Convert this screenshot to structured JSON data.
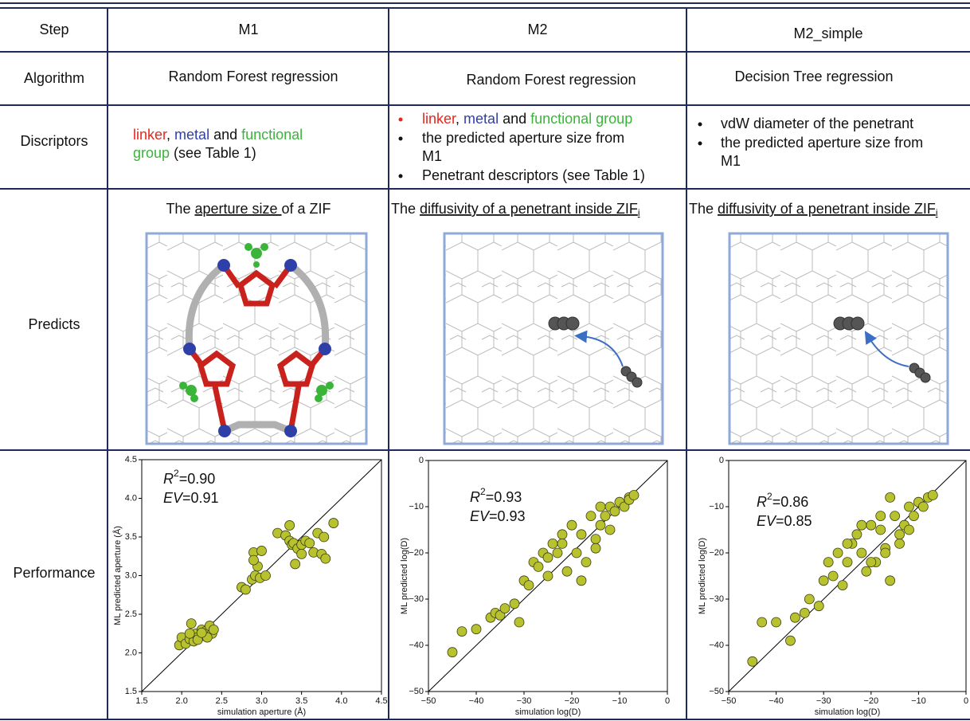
{
  "table": {
    "header": [
      "Step",
      "M1",
      "M2",
      "M2_simple"
    ],
    "rows": [
      {
        "label": "Algorithm",
        "cells": [
          "Random Forest regression",
          "Random Forest regression",
          "Decision Tree regression"
        ]
      },
      {
        "label": "Discriptors",
        "cells": [
          [
            "linker",
            ", ",
            "metal",
            " and ",
            "functional",
            "group",
            " (see Table 1)"
          ],
          [
            [
              "linker",
              ", ",
              "metal",
              " and ",
              "functional group"
            ],
            [
              "the predicted aperture size from",
              "M1"
            ],
            [
              "Penetrant descriptors (see Table 1)"
            ]
          ],
          [
            [
              "vdW diameter of the penetrant"
            ],
            [
              "the predicted aperture size from",
              "M1"
            ]
          ]
        ]
      },
      {
        "label": "Predicts",
        "cells": [
          [
            "The ",
            "aperture size ",
            "of a ZIF"
          ],
          [
            "The ",
            "diffusivity of a penetrant inside ZIF",
            "i"
          ],
          [
            "The ",
            "diffusivity of a penetrant inside ZIF",
            "i"
          ]
        ]
      },
      {
        "label": "Performance"
      }
    ]
  },
  "chart_data": [
    {
      "type": "scatter",
      "xlabel": "simulation aperture (Å)",
      "ylabel": "ML predicted aperture (Å)",
      "xlim": [
        1.5,
        4.5
      ],
      "ylim": [
        1.5,
        4.5
      ],
      "xticks": [
        1.5,
        {
          "value": 2,
          "label": "2.0"
        },
        2.5,
        {
          "value": 3,
          "label": "3.0"
        },
        3.5,
        {
          "value": 4,
          "label": "4.0"
        },
        4.5
      ],
      "yticks": [
        1.5,
        {
          "value": 2,
          "label": "2.0"
        },
        2.5,
        {
          "value": 3,
          "label": "3.0"
        },
        3.5,
        {
          "value": 4,
          "label": "4.0"
        },
        4.5
      ],
      "annotations": [
        {
          "var": "R",
          "sup": "2",
          "text": "=0.90"
        },
        {
          "var": "EV",
          "text": "=0.91"
        }
      ],
      "series": [
        {
          "color": "#b8c22e",
          "x": [
            1.97,
            2.0,
            2.05,
            2.1,
            2.12,
            2.15,
            2.18,
            2.2,
            2.25,
            2.28,
            2.3,
            2.35,
            2.38,
            2.4,
            2.1,
            2.2,
            2.32,
            2.25,
            2.75,
            2.8,
            2.88,
            2.9,
            2.92,
            2.95,
            2.98,
            3.0,
            3.05,
            2.9,
            3.2,
            3.3,
            3.35,
            3.38,
            3.4,
            3.42,
            3.45,
            3.5,
            3.55,
            3.6,
            3.65,
            3.7,
            3.75,
            3.78,
            3.8,
            3.9,
            3.35,
            3.5
          ],
          "values": [
            2.1,
            2.2,
            2.12,
            2.18,
            2.38,
            2.15,
            2.25,
            2.2,
            2.3,
            2.22,
            2.28,
            2.35,
            2.25,
            2.3,
            2.25,
            2.17,
            2.2,
            2.26,
            2.85,
            2.82,
            2.95,
            3.3,
            3.0,
            3.12,
            2.97,
            3.32,
            3.0,
            3.2,
            3.55,
            3.52,
            3.45,
            3.4,
            3.42,
            3.15,
            3.35,
            3.4,
            3.45,
            3.42,
            3.3,
            3.55,
            3.28,
            3.5,
            3.22,
            3.68,
            3.65,
            3.28
          ]
        }
      ]
    },
    {
      "type": "scatter",
      "xlabel": "simulation log(D)",
      "ylabel": "ML predicted log(D)",
      "xlim": [
        -50,
        0
      ],
      "ylim": [
        -50,
        0
      ],
      "xticks": [
        {
          "value": -50,
          "label": "−50"
        },
        {
          "value": -40,
          "label": "−40"
        },
        {
          "value": -30,
          "label": "−30"
        },
        {
          "value": -20,
          "label": "−20"
        },
        {
          "value": -10,
          "label": "−10"
        },
        0
      ],
      "yticks": [
        {
          "value": -50,
          "label": "−50"
        },
        {
          "value": -40,
          "label": "−40"
        },
        {
          "value": -30,
          "label": "−30"
        },
        {
          "value": -20,
          "label": "−20"
        },
        {
          "value": -10,
          "label": "−10"
        },
        0
      ],
      "annotations": [
        {
          "var": "R",
          "sup": "2",
          "text": "=0.93"
        },
        {
          "var": "EV",
          "text": "=0.93"
        }
      ],
      "series": [
        {
          "color": "#b8c22e",
          "x": [
            -45,
            -43,
            -40,
            -37,
            -36,
            -35,
            -34,
            -32,
            -31,
            -30,
            -29,
            -28,
            -27,
            -26,
            -25,
            -24,
            -23,
            -22,
            -21,
            -20,
            -19,
            -18,
            -17,
            -16,
            -15,
            -14,
            -13,
            -12,
            -11,
            -10,
            -9,
            -8,
            -8,
            -7,
            -12,
            -15,
            -18,
            -22,
            -25,
            -14
          ],
          "values": [
            -41.5,
            -37,
            -36.5,
            -34,
            -33,
            -33.5,
            -32,
            -31,
            -35,
            -26,
            -27,
            -22,
            -23,
            -20,
            -25,
            -18,
            -20,
            -16,
            -24,
            -14,
            -20,
            -16,
            -22,
            -12,
            -17,
            -14,
            -12,
            -10,
            -11,
            -9,
            -10,
            -8,
            -8.5,
            -7.5,
            -15,
            -19,
            -26,
            -18,
            -21,
            -10
          ]
        }
      ]
    },
    {
      "type": "scatter",
      "xlabel": "simulation log(D)",
      "ylabel": "ML predicted log(D)",
      "xlim": [
        -50,
        0
      ],
      "ylim": [
        -50,
        0
      ],
      "xticks": [
        {
          "value": -50,
          "label": "−50"
        },
        {
          "value": -40,
          "label": "−40"
        },
        {
          "value": -30,
          "label": "−30"
        },
        {
          "value": -20,
          "label": "−20"
        },
        {
          "value": -10,
          "label": "−10"
        },
        0
      ],
      "yticks": [
        {
          "value": -50,
          "label": "−50"
        },
        {
          "value": -40,
          "label": "−40"
        },
        {
          "value": -30,
          "label": "−30"
        },
        {
          "value": -20,
          "label": "−20"
        },
        {
          "value": -10,
          "label": "−10"
        },
        0
      ],
      "annotations": [
        {
          "var": "R",
          "sup": "2",
          "text": "=0.86"
        },
        {
          "var": "EV",
          "text": "=0.85"
        }
      ],
      "series": [
        {
          "color": "#b8c22e",
          "x": [
            -45,
            -43,
            -40,
            -37,
            -36,
            -34,
            -33,
            -31,
            -30,
            -29,
            -28,
            -27,
            -26,
            -25,
            -24,
            -23,
            -22,
            -21,
            -20,
            -19,
            -18,
            -17,
            -16,
            -15,
            -14,
            -13,
            -12,
            -11,
            -10,
            -9,
            -8,
            -7,
            -20,
            -17,
            -14,
            -22,
            -18,
            -25,
            -12,
            -16
          ],
          "values": [
            -43.5,
            -35,
            -35,
            -39,
            -34,
            -33,
            -30,
            -31.5,
            -26,
            -22,
            -25,
            -20,
            -27,
            -22,
            -18,
            -16,
            -20,
            -24,
            -14,
            -22,
            -15,
            -19,
            -26,
            -12,
            -18,
            -14,
            -10,
            -12,
            -9,
            -10,
            -8,
            -7.5,
            -22,
            -20,
            -16,
            -14,
            -12,
            -18,
            -15,
            -8
          ]
        }
      ]
    }
  ]
}
